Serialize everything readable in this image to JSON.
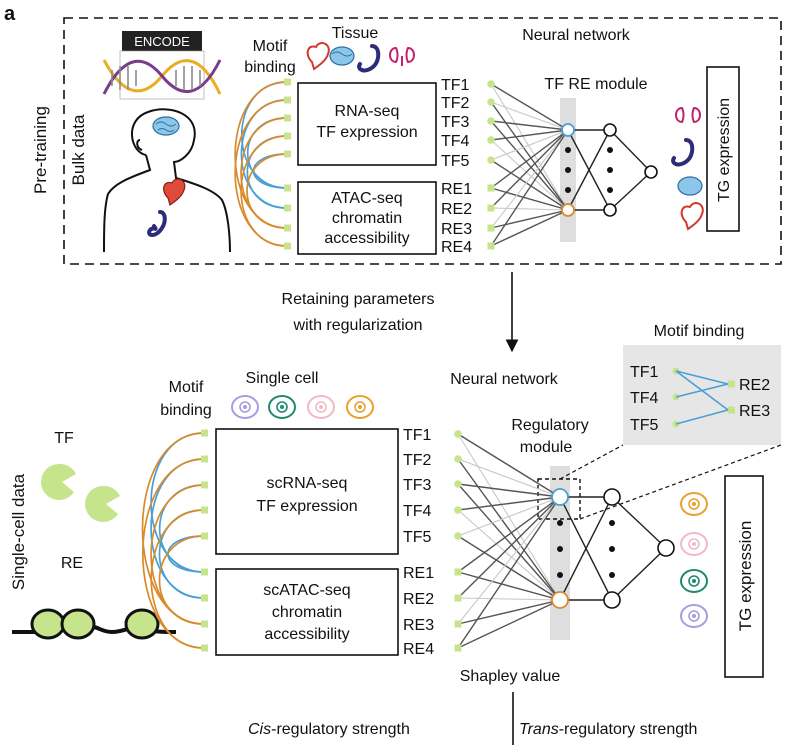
{
  "panel_label": "a",
  "pretraining": {
    "side_label": "Pre-training",
    "bulk_label": "Bulk data",
    "encode_logo": "ENCODE",
    "tissue_label": "Tissue",
    "motif_label_1": "Motif",
    "motif_label_2": "binding",
    "nn_label": "Neural network",
    "module_label": "TF RE module",
    "rna_box": [
      "RNA-seq",
      "TF expression"
    ],
    "atac_box": [
      "ATAC-seq",
      "chromatin",
      "accessibility"
    ],
    "tfs": [
      "TF1",
      "TF2",
      "TF3",
      "TF4",
      "TF5"
    ],
    "res": [
      "RE1",
      "RE2",
      "RE3",
      "RE4"
    ],
    "tg_label": "TG expression",
    "tissue_icons": [
      "heart-icon",
      "brain-icon",
      "stomach-icon",
      "kidney-icon"
    ]
  },
  "transition": {
    "line1": "Retaining parameters",
    "line2": "with regularization"
  },
  "singlecell": {
    "side_label": "Single-cell data",
    "tf_label": "TF",
    "re_label": "RE",
    "sc_label": "Single cell",
    "motif_label_1": "Motif",
    "motif_label_2": "binding",
    "nn_label": "Neural network",
    "module_label_1": "Regulatory",
    "module_label_2": "module",
    "rna_box": [
      "scRNA-seq",
      "TF expression"
    ],
    "atac_box": [
      "scATAC-seq",
      "chromatin",
      "accessibility"
    ],
    "tfs": [
      "TF1",
      "TF2",
      "TF3",
      "TF4",
      "TF5"
    ],
    "res": [
      "RE1",
      "RE2",
      "RE3",
      "RE4"
    ],
    "tg_label": "TG expression",
    "shapley": "Shapley value",
    "motif_inset": {
      "title": "Motif binding",
      "tfs": [
        "TF1",
        "TF4",
        "TF5"
      ],
      "res": [
        "RE2",
        "RE3"
      ]
    }
  },
  "bottom": {
    "cis_italic": "Cis",
    "cis_rest": "-regulatory strength",
    "trans_italic": "Trans",
    "trans_rest": "-regulatory strength"
  },
  "colors": {
    "node_green": "#c6e48b",
    "arc_blue": "#4a9fd4",
    "arc_orange": "#d98a2b",
    "module_gray": "#dedede",
    "inset_gray": "#e6e6e6",
    "node_blue": "#4a9fd4",
    "node_orange": "#d98a2b",
    "cell_purple": "#a99be0",
    "cell_teal": "#1f8a6e",
    "cell_pink": "#f2b8c6",
    "cell_orange": "#e8a02f"
  }
}
